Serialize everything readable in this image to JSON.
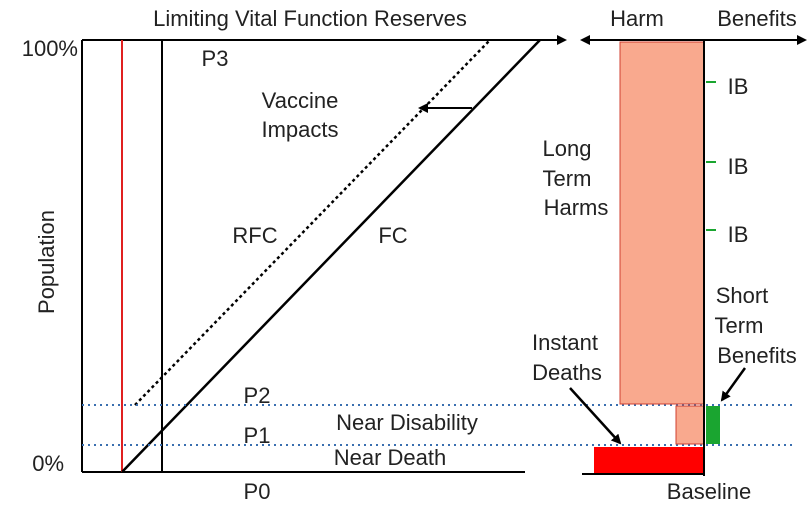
{
  "title": "Limiting Vital Function Reserves",
  "right_headers": {
    "harm": "Harm",
    "benefits": "Benefits"
  },
  "y_axis": {
    "label": "Population",
    "top": "100%",
    "bottom": "0%"
  },
  "left_labels": {
    "p3": "P3",
    "vaccine_impacts": [
      "Vaccine",
      "Impacts"
    ],
    "rfc": "RFC",
    "fc": "FC",
    "p2": "P2",
    "p1": "P1",
    "near_disability": "Near Disability",
    "near_death": "Near Death",
    "p0": "P0"
  },
  "right_labels": {
    "long_term_harms": [
      "Long",
      "Term",
      "Harms"
    ],
    "ib": [
      "IB",
      "IB",
      "IB"
    ],
    "short_term_benefits": [
      "Short",
      "Term",
      "Benefits"
    ],
    "instant_deaths": [
      "Instant",
      "Deaths"
    ],
    "baseline": "Baseline"
  }
}
